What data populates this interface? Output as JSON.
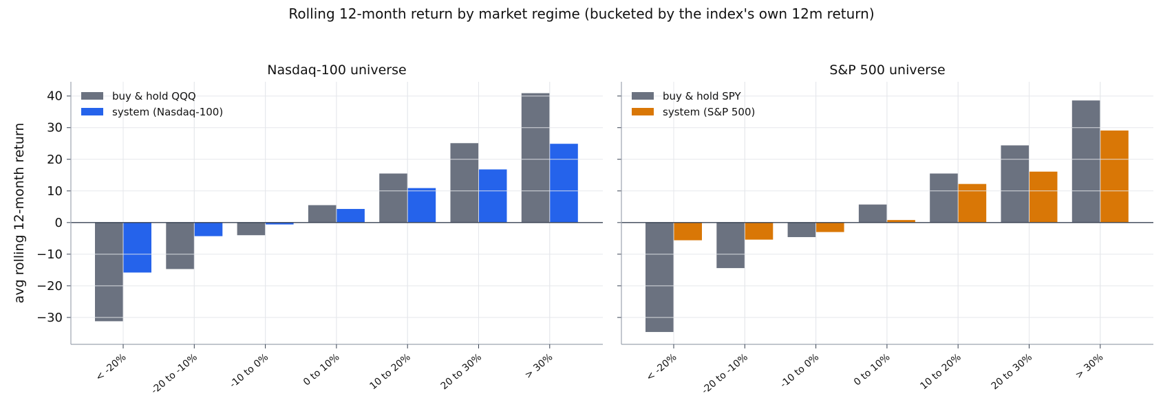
{
  "figure": {
    "suptitle": "Rolling 12-month return by market regime (bucketed by the index's own 12m return)",
    "shared_ylabel": "avg rolling 12-month return"
  },
  "colors": {
    "buy_hold": "#6b7280",
    "system_nasdaq": "#2563eb",
    "system_sp500": "#d97706",
    "axis": "#9ca3af",
    "grid": "#e5e7eb",
    "zero_line": "#374151",
    "text": "#111111"
  },
  "chart_data": [
    {
      "type": "bar",
      "title": "Nasdaq-100 universe",
      "xlabel": "",
      "ylabel": "avg rolling 12-month return",
      "categories": [
        "< -20%",
        "-20 to -10%",
        "-10 to 0%",
        "0 to 10%",
        "10 to 20%",
        "20 to 30%",
        "> 30%"
      ],
      "series": [
        {
          "name": "buy & hold QQQ",
          "values": [
            -31.2,
            -14.7,
            -4.0,
            5.5,
            15.5,
            25.1,
            40.9
          ],
          "color_key": "buy_hold"
        },
        {
          "name": "system (Nasdaq-100)",
          "values": [
            -15.8,
            -4.3,
            -0.6,
            4.3,
            10.9,
            16.8,
            24.9
          ],
          "color_key": "system_nasdaq"
        }
      ],
      "ylim": [
        -38.5,
        44.5
      ],
      "yticks": [
        -30,
        -20,
        -10,
        0,
        10,
        20,
        30,
        40
      ],
      "grid": true,
      "legend": "top-left"
    },
    {
      "type": "bar",
      "title": "S&P 500 universe",
      "xlabel": "",
      "ylabel": "",
      "categories": [
        "< -20%",
        "-20 to -10%",
        "-10 to 0%",
        "0 to 10%",
        "10 to 20%",
        "20 to 30%",
        "> 30%"
      ],
      "series": [
        {
          "name": "buy & hold SPY",
          "values": [
            -34.6,
            -14.4,
            -4.6,
            5.7,
            15.5,
            24.4,
            38.6
          ],
          "color_key": "buy_hold"
        },
        {
          "name": "system (S&P 500)",
          "values": [
            -5.6,
            -5.4,
            -3.0,
            0.8,
            12.2,
            16.1,
            29.1
          ],
          "color_key": "system_sp500"
        }
      ],
      "ylim": [
        -38.5,
        44.5
      ],
      "yticks": [
        -30,
        -20,
        -10,
        0,
        10,
        20,
        30,
        40
      ],
      "grid": true,
      "legend": "top-left"
    }
  ]
}
